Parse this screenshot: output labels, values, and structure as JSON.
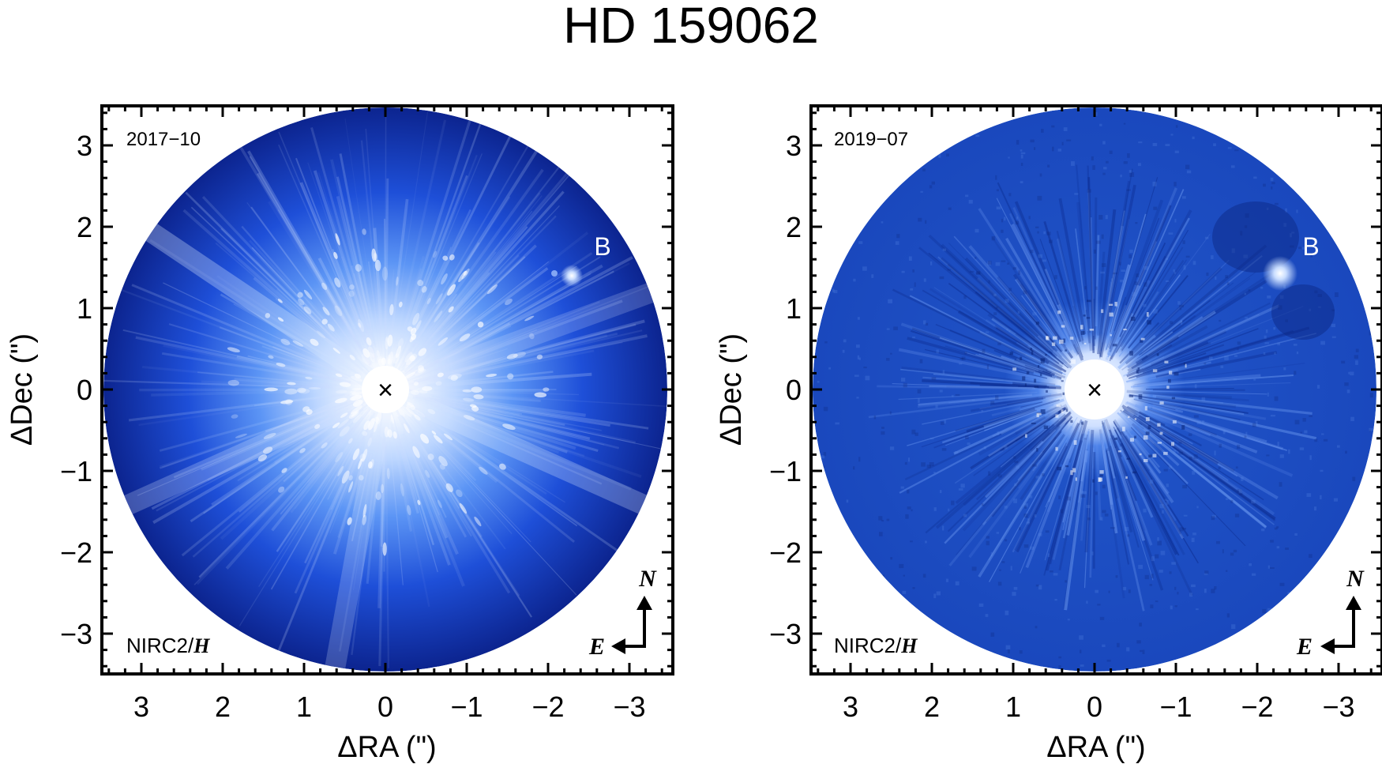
{
  "figure": {
    "title": "HD 159062"
  },
  "panels": [
    {
      "epoch": "2017−10",
      "instrument": "NIRC2/",
      "band": "H",
      "companion": "B",
      "xlabel": "ΔRA (\")",
      "ylabel": "ΔDec (\")",
      "style": "halo",
      "colors": {
        "disk_dark": "#0a1f8f",
        "disk_mid": "#1a4fe0",
        "glow": "#e8f2ff"
      }
    },
    {
      "epoch": "2019−07",
      "instrument": "NIRC2/",
      "band": "H",
      "companion": "B",
      "xlabel": "ΔRA (\")",
      "ylabel": "ΔDec (\")",
      "style": "subtracted",
      "colors": {
        "disk_dark": "#0d2e9e",
        "disk_mid": "#1f52c8",
        "glow": "#dfeaff"
      }
    }
  ],
  "axes": {
    "xticks": [
      "3",
      "2",
      "1",
      "0",
      "−1",
      "−2",
      "−3"
    ],
    "yticks": [
      "3",
      "2",
      "1",
      "0",
      "−1",
      "−2",
      "−3"
    ]
  },
  "compass": {
    "north": "N",
    "east": "E"
  },
  "star_marker": "×"
}
